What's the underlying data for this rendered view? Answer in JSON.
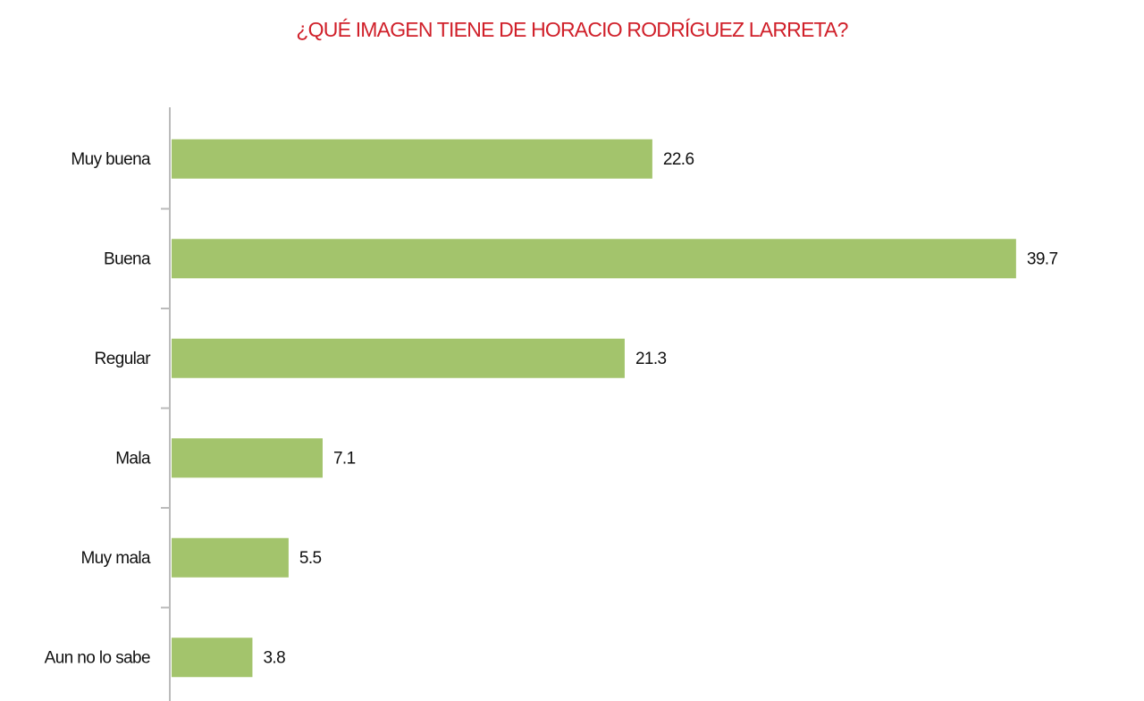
{
  "chart_data": {
    "type": "bar",
    "orientation": "horizontal",
    "title": "¿QUÉ IMAGEN TIENE DE HORACIO RODRÍGUEZ LARRETA?",
    "categories": [
      "Muy buena",
      "Buena",
      "Regular",
      "Mala",
      "Muy mala",
      "Aun no lo sabe"
    ],
    "values": [
      22.6,
      39.7,
      21.3,
      7.1,
      5.5,
      3.8
    ],
    "color": "#a3c46c"
  }
}
